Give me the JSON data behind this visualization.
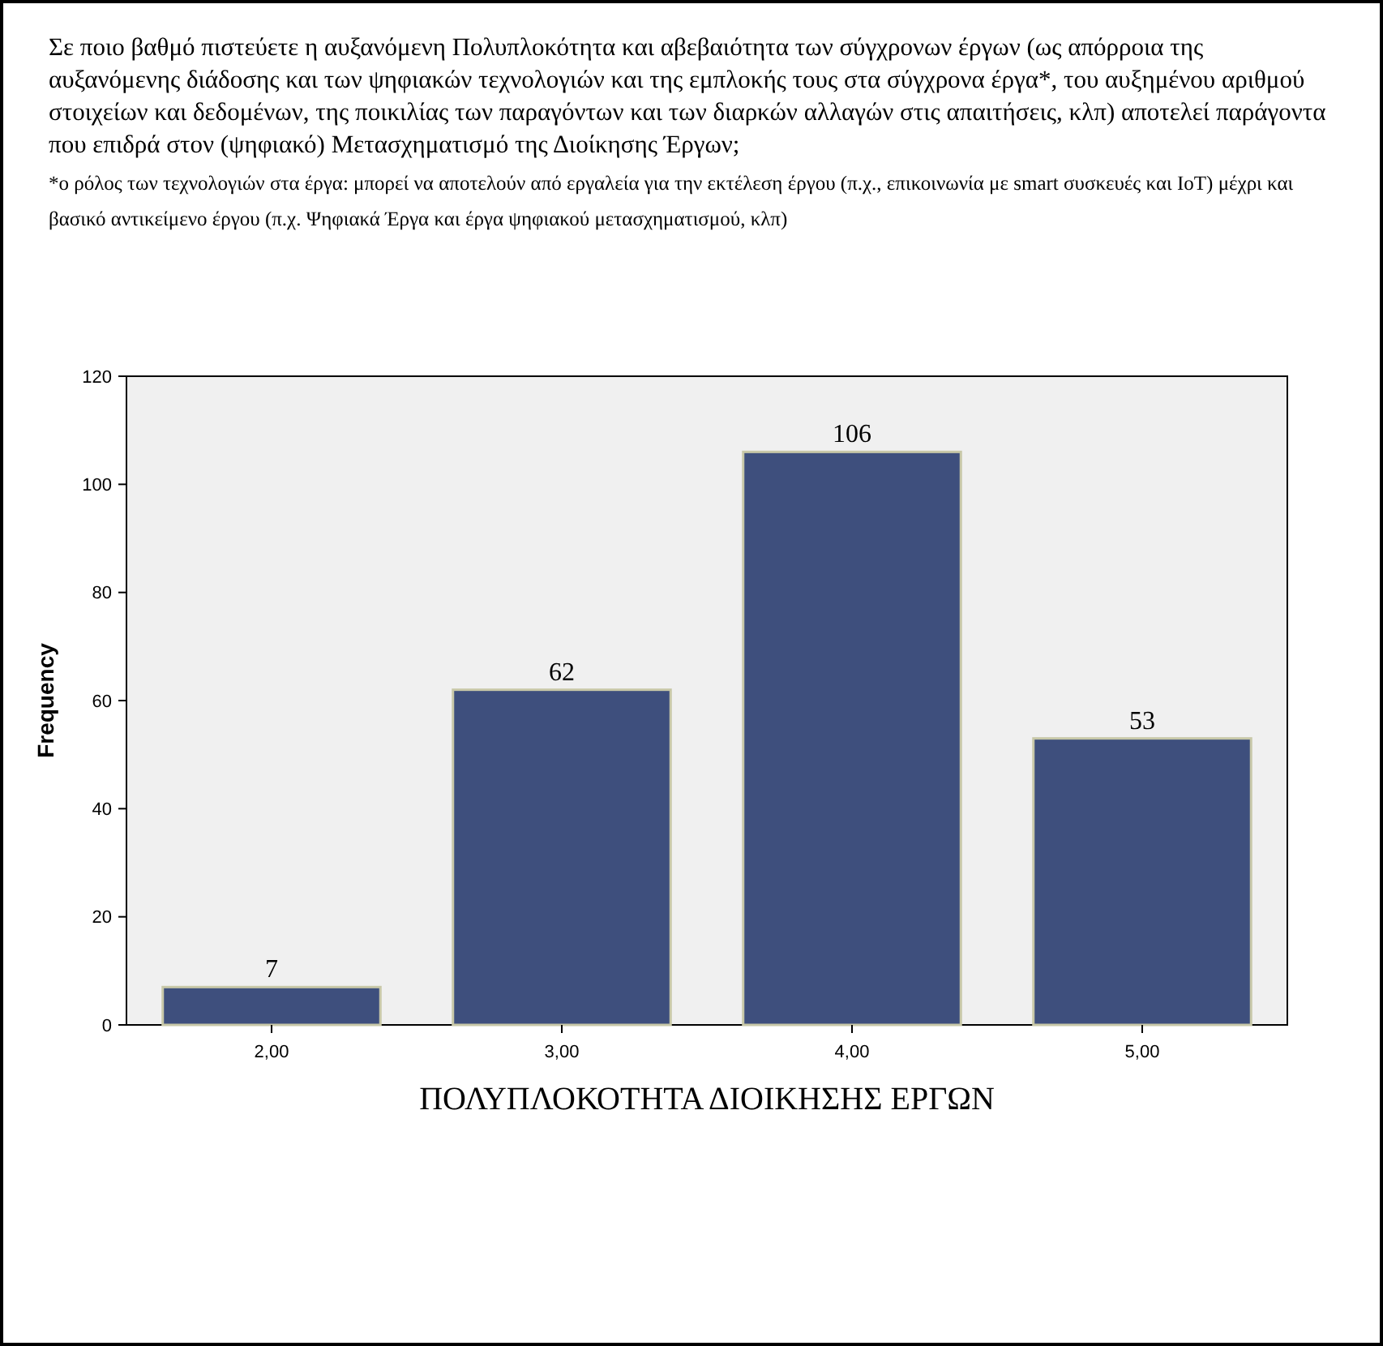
{
  "chart_data": {
    "type": "bar",
    "title": "Σε ποιο βαθμό πιστεύετε η αυξανόμενη Πολυπλοκότητα και αβεβαιότητα των σύγχρονων έργων (ως απόρροια της αυξανόμενης διάδοσης και των ψηφιακών τεχνολογιών και της εμπλοκής τους στα σύγχρονα έργα*, του αυξημένου αριθμού στοιχείων και δεδομένων, της ποικιλίας των παραγόντων και των διαρκών αλλαγών στις απαιτήσεις, κλπ) αποτελεί παράγοντα που επιδρά στον (ψηφιακό) Μετασχηματισμό της Διοίκησης Έργων;",
    "subtitle": "*ο ρόλος των τεχνολογιών στα έργα: μπορεί να αποτελούν από εργαλεία για την εκτέλεση έργου (π.χ., επικοινωνία με smart συσκευές και IoT) μέχρι και βασικό αντικείμενο έργου (π.χ. Ψηφιακά Έργα και έργα ψηφιακού μετασχηματισμού, κλπ)",
    "xlabel": "ΠΟΛΥΠΛΟΚΟΤΗΤΑ ΔΙΟΙΚΗΣΗΣ ΕΡΓΩΝ",
    "ylabel": "Frequency",
    "categories": [
      "2,00",
      "3,00",
      "4,00",
      "5,00"
    ],
    "values": [
      7,
      62,
      106,
      53
    ],
    "color": "#3e4f7d",
    "ylim": [
      0,
      120
    ],
    "yticks": [
      0,
      20,
      40,
      60,
      80,
      100,
      120
    ],
    "data_labels": true
  }
}
